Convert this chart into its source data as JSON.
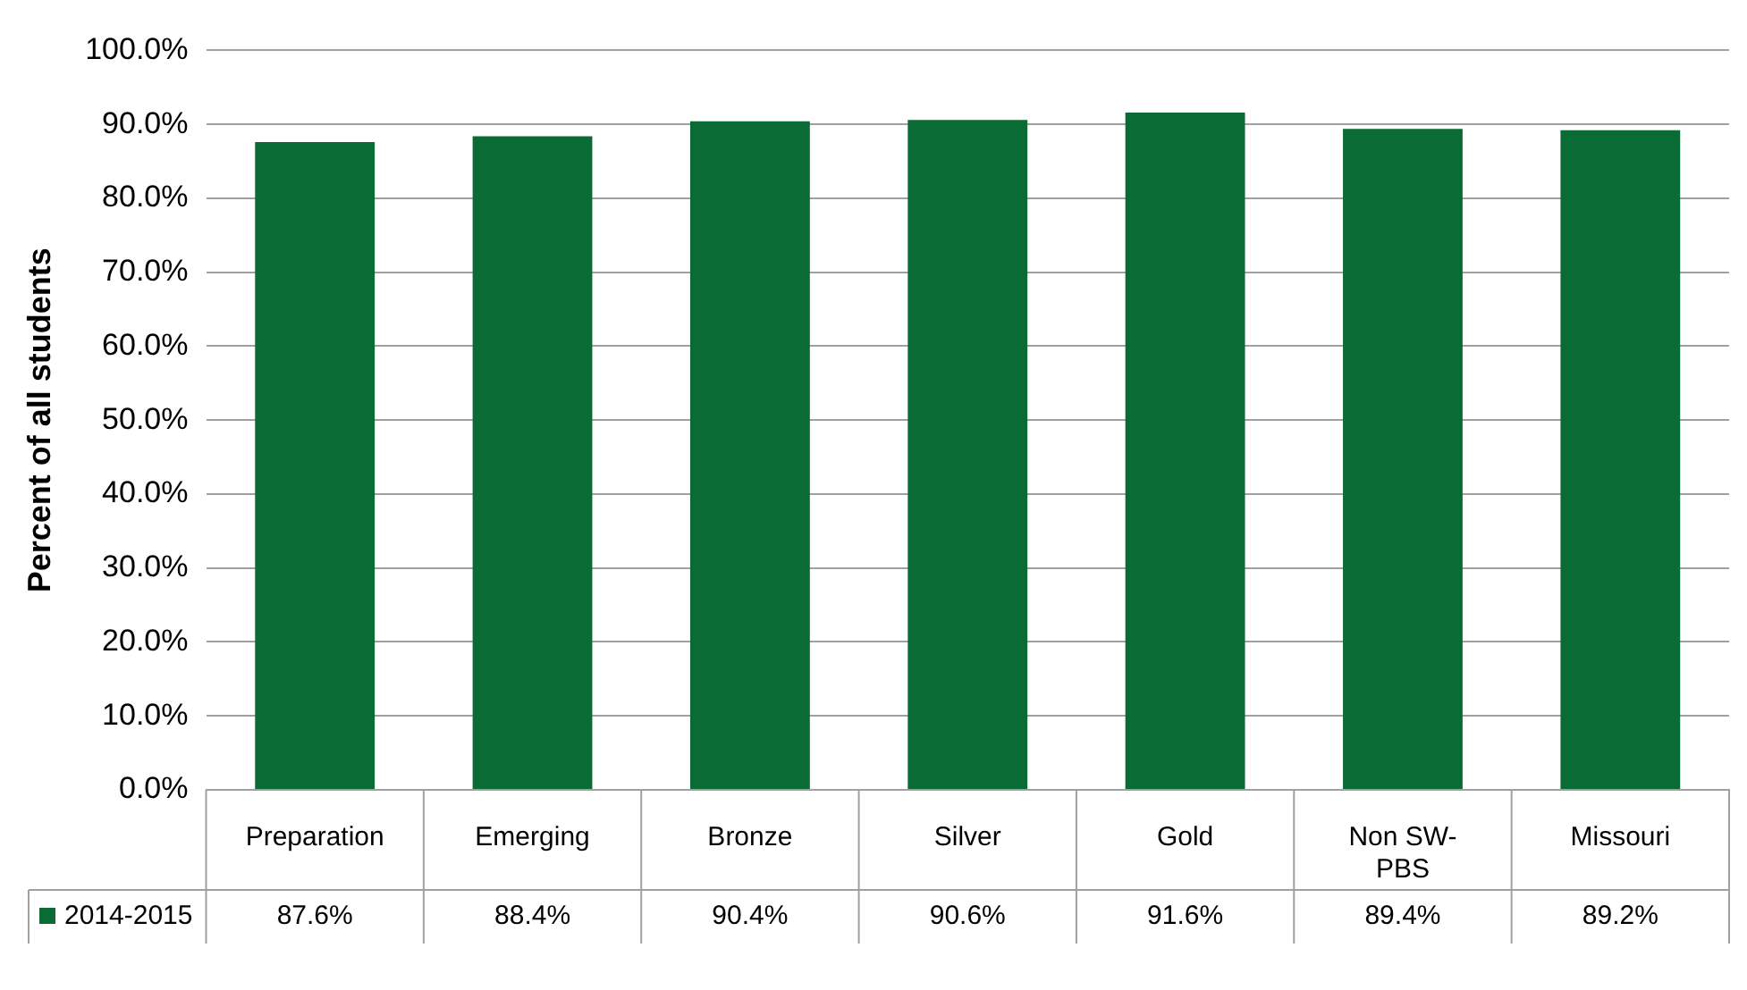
{
  "chart_data": {
    "type": "bar",
    "ylabel": "Percent of all students",
    "categories": [
      "Preparation",
      "Emerging",
      "Bronze",
      "Silver",
      "Gold",
      "Non SW-PBS",
      "Missouri"
    ],
    "series": [
      {
        "name": "2014-2015",
        "color": "#0b6b35",
        "values": [
          87.6,
          88.4,
          90.4,
          90.6,
          91.6,
          89.4,
          89.2
        ],
        "value_labels": [
          "87.6%",
          "88.4%",
          "90.4%",
          "90.6%",
          "91.6%",
          "89.4%",
          "89.2%"
        ]
      }
    ],
    "ylim": [
      0,
      100
    ],
    "yticks": [
      {
        "value": 0,
        "label": "0.0%"
      },
      {
        "value": 10,
        "label": "10.0%"
      },
      {
        "value": 20,
        "label": "20.0%"
      },
      {
        "value": 30,
        "label": "30.0%"
      },
      {
        "value": 40,
        "label": "40.0%"
      },
      {
        "value": 50,
        "label": "50.0%"
      },
      {
        "value": 60,
        "label": "60.0%"
      },
      {
        "value": 70,
        "label": "70.0%"
      },
      {
        "value": 80,
        "label": "80.0%"
      },
      {
        "value": 90,
        "label": "90.0%"
      },
      {
        "value": 100,
        "label": "100.0%"
      }
    ],
    "grid": "y",
    "legend": "bottom left"
  }
}
